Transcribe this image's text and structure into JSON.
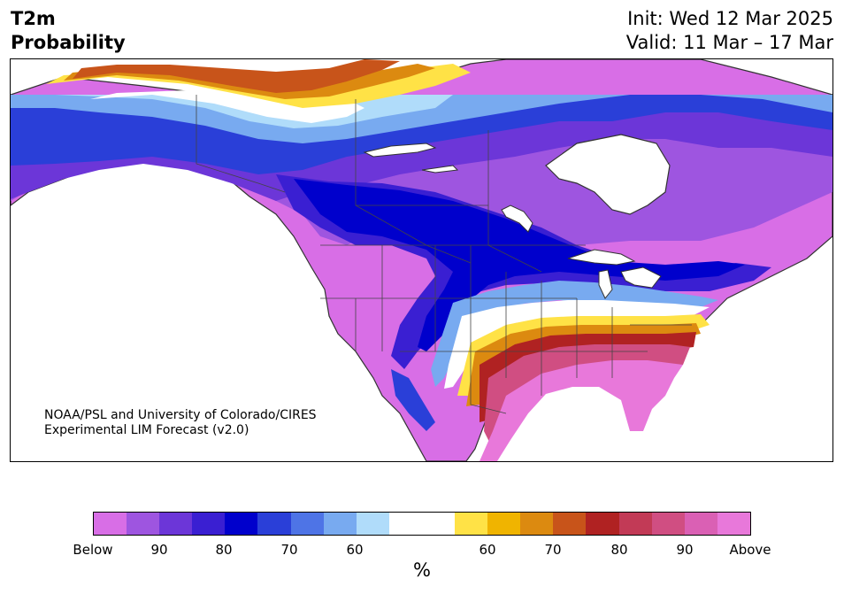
{
  "title": {
    "left_line1": "T2m",
    "left_line2": "Probability",
    "init": "Init: Wed 12 Mar 2025",
    "valid": "Valid: 11 Mar – 17 Mar"
  },
  "credit": {
    "line1": "NOAA/PSL and University of Colorado/CIRES",
    "line2": "Experimental LIM Forecast (v2.0)"
  },
  "colorbar": {
    "colors": [
      "#d86ee6",
      "#9e55e0",
      "#6c36d8",
      "#3a1fd2",
      "#0000cc",
      "#2a3fd8",
      "#4e74e6",
      "#78aaf0",
      "#b0dcfa",
      "#ffffff",
      "#ffffff",
      "#ffe246",
      "#f0b400",
      "#dc8a10",
      "#c8541a",
      "#b02222",
      "#c23a56",
      "#d04e82",
      "#da60b4",
      "#e878da"
    ],
    "labels": [
      "Below",
      "90",
      "80",
      "70",
      "60",
      "60",
      "70",
      "80",
      "90",
      "Above"
    ],
    "unit": "%"
  },
  "map": {
    "land_color": "#d86ee6",
    "ocean_color": "#ffffff",
    "coast_color": "#333333",
    "border_color": "#444444"
  }
}
